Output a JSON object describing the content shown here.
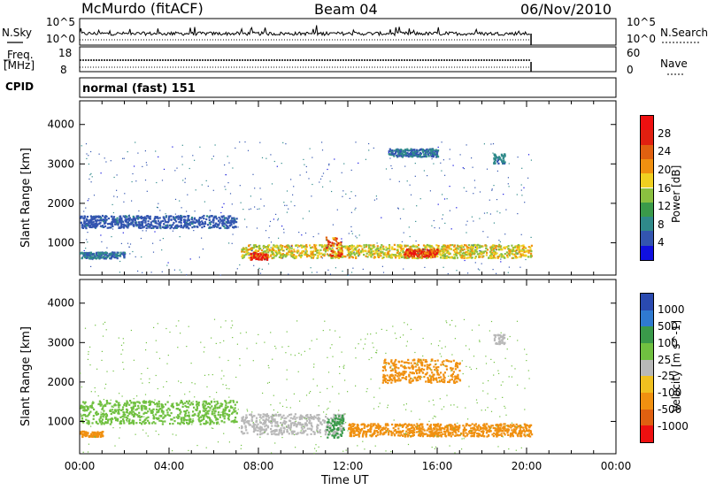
{
  "header": {
    "station": "McMurdo (fitACF)",
    "beam": "Beam 04",
    "date": "06/Nov/2010"
  },
  "noise_panel": {
    "left_label": "N.Sky",
    "left_ticks": [
      "10^5",
      "10^0"
    ],
    "right_label": "N.Search",
    "right_ticks": [
      "10^5",
      "10^0"
    ]
  },
  "freq_panel": {
    "left_label_1": "Freq.",
    "left_label_2": "[MHz]",
    "left_ticks": [
      "18",
      "8"
    ],
    "right_label": "Nave",
    "right_ticks": [
      "60",
      "0"
    ]
  },
  "cpid": {
    "label": "CPID",
    "value": "normal (fast) 151"
  },
  "colors": {
    "power_scale": [
      "#1010e0",
      "#3355b0",
      "#2f8a8a",
      "#3a9a4a",
      "#8ac040",
      "#f0d020",
      "#f09010",
      "#e06010",
      "#e02010",
      "#ee1010"
    ],
    "velocity_scale": [
      "#2a4ab0",
      "#2f7ad0",
      "#3a9a4a",
      "#70c040",
      "#b8b8b8",
      "#f0c020",
      "#f09010",
      "#e06010",
      "#ee1010"
    ]
  },
  "chart_data": [
    {
      "type": "heatmap",
      "title": "",
      "ylabel": "Slant Range [km]",
      "xlabel": "",
      "x_range_hours": [
        0,
        24
      ],
      "ylim": [
        180,
        4600
      ],
      "x_ticks": [
        "00:00",
        "04:00",
        "08:00",
        "12:00",
        "16:00",
        "20:00",
        "00:00"
      ],
      "y_ticks": [
        "1000",
        "2000",
        "3000",
        "4000"
      ],
      "colorbar": {
        "label": "Power [dB]",
        "ticks": [
          "28",
          "24",
          "20",
          "16",
          "12",
          "8",
          "4"
        ],
        "range": [
          0,
          30
        ]
      },
      "features": [
        {
          "x_start": 7.2,
          "x_end": 20.2,
          "y_center": 800,
          "y_halfwidth": 170,
          "value": 16
        },
        {
          "x_start": 7.6,
          "x_end": 8.4,
          "y_center": 680,
          "y_halfwidth": 90,
          "value": 26
        },
        {
          "x_start": 11.0,
          "x_end": 11.7,
          "y_center": 920,
          "y_halfwidth": 260,
          "value": 22
        },
        {
          "x_start": 14.5,
          "x_end": 16.0,
          "y_center": 760,
          "y_halfwidth": 100,
          "value": 24
        },
        {
          "x_start": 0.0,
          "x_end": 7.0,
          "y_center": 1550,
          "y_halfwidth": 160,
          "value": 5
        },
        {
          "x_start": 0.0,
          "x_end": 2.0,
          "y_center": 700,
          "y_halfwidth": 80,
          "value": 6
        },
        {
          "x_start": 13.8,
          "x_end": 16.0,
          "y_center": 3300,
          "y_halfwidth": 100,
          "value": 6
        },
        {
          "x_start": 18.5,
          "x_end": 19.0,
          "y_center": 3150,
          "y_halfwidth": 120,
          "value": 7
        }
      ]
    },
    {
      "type": "heatmap",
      "title": "",
      "ylabel": "Slant Range [km]",
      "xlabel": "Time UT",
      "x_range_hours": [
        0,
        24
      ],
      "ylim": [
        180,
        4600
      ],
      "x_ticks": [
        "00:00",
        "04:00",
        "08:00",
        "12:00",
        "16:00",
        "20:00",
        "00:00"
      ],
      "y_ticks": [
        "1000",
        "2000",
        "3000",
        "4000"
      ],
      "colorbar": {
        "label": "Velocity [m s^-1]",
        "ticks": [
          "1000",
          "500",
          "100",
          "25",
          "-25",
          "-100",
          "-500",
          "-1000"
        ],
        "range": [
          -1200,
          1200
        ]
      },
      "features": [
        {
          "x_start": 7.2,
          "x_end": 11.8,
          "y_center": 950,
          "y_halfwidth": 260,
          "value": 20
        },
        {
          "x_start": 11.0,
          "x_end": 11.8,
          "y_center": 900,
          "y_halfwidth": 300,
          "value": 300
        },
        {
          "x_start": 12.0,
          "x_end": 20.2,
          "y_center": 800,
          "y_halfwidth": 160,
          "value": -200
        },
        {
          "x_start": 0.0,
          "x_end": 1.0,
          "y_center": 700,
          "y_halfwidth": 70,
          "value": -300
        },
        {
          "x_start": 0.0,
          "x_end": 7.0,
          "y_center": 1250,
          "y_halfwidth": 300,
          "value": 60
        },
        {
          "x_start": 13.5,
          "x_end": 17.0,
          "y_center": 2300,
          "y_halfwidth": 300,
          "value": -150
        },
        {
          "x_start": 18.5,
          "x_end": 19.0,
          "y_center": 3100,
          "y_halfwidth": 120,
          "value": 0
        }
      ]
    }
  ]
}
